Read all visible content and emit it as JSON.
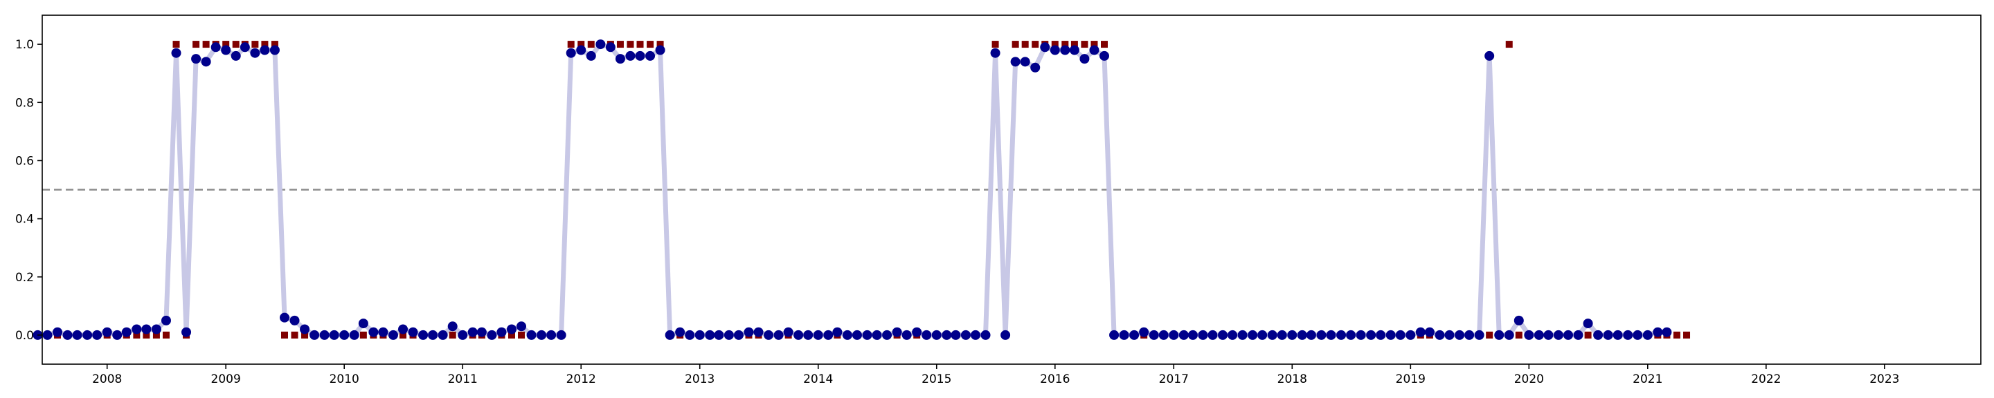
{
  "chart_data": {
    "type": "line",
    "title": "",
    "xlabel": "",
    "ylabel": "",
    "x_start": "2007-06",
    "x_step": "month",
    "xlim": [
      "2007-06-15",
      "2023-10-25"
    ],
    "ylim": [
      -0.1,
      1.1
    ],
    "x_ticks": [
      "2008",
      "2009",
      "2010",
      "2011",
      "2012",
      "2013",
      "2014",
      "2015",
      "2016",
      "2017",
      "2018",
      "2019",
      "2020",
      "2021",
      "2022",
      "2023"
    ],
    "y_ticks": [
      "0.0",
      "0.2",
      "0.4",
      "0.6",
      "0.8",
      "1.0"
    ],
    "threshold": 0.5,
    "grid": false,
    "series": [
      {
        "role": "predicted-probability",
        "style": "line+markers",
        "line_color": "#c8c8e6",
        "marker_color": "#00008b",
        "values": [
          0.0,
          0.0,
          0.01,
          0.0,
          0.0,
          0.0,
          0.0,
          0.01,
          0.0,
          0.01,
          0.02,
          0.02,
          0.02,
          0.05,
          0.97,
          0.01,
          0.95,
          0.94,
          0.99,
          0.98,
          0.96,
          0.99,
          0.97,
          0.98,
          0.98,
          0.06,
          0.05,
          0.02,
          0.0,
          0.0,
          0.0,
          0.0,
          0.0,
          0.04,
          0.01,
          0.01,
          0.0,
          0.02,
          0.01,
          0.0,
          0.0,
          0.0,
          0.03,
          0.0,
          0.01,
          0.01,
          0.0,
          0.01,
          0.02,
          0.03,
          0.0,
          0.0,
          0.0,
          0.0,
          0.97,
          0.98,
          0.96,
          1.0,
          0.99,
          0.95,
          0.96,
          0.96,
          0.96,
          0.98,
          0.0,
          0.01,
          0.0,
          0.0,
          0.0,
          0.0,
          0.0,
          0.0,
          0.01,
          0.01,
          0.0,
          0.0,
          0.01,
          0.0,
          0.0,
          0.0,
          0.0,
          0.01,
          0.0,
          0.0,
          0.0,
          0.0,
          0.0,
          0.01,
          0.0,
          0.01,
          0.0,
          0.0,
          0.0,
          0.0,
          0.0,
          0.0,
          0.0,
          0.97,
          0.0,
          0.94,
          0.94,
          0.92,
          0.99,
          0.98,
          0.98,
          0.98,
          0.95,
          0.98,
          0.96,
          0.0,
          0.0,
          0.0,
          0.01,
          0.0,
          0.0,
          0.0,
          0.0,
          0.0,
          0.0,
          0.0,
          0.0,
          0.0,
          0.0,
          0.0,
          0.0,
          0.0,
          0.0,
          0.0,
          0.0,
          0.0,
          0.0,
          0.0,
          0.0,
          0.0,
          0.0,
          0.0,
          0.0,
          0.0,
          0.0,
          0.0,
          0.01,
          0.01,
          0.0,
          0.0,
          0.0,
          0.0,
          0.0,
          0.96,
          0.0,
          0.0,
          0.05,
          0.0,
          0.0,
          0.0,
          0.0,
          0.0,
          0.0,
          0.04,
          0.0,
          0.0,
          0.0,
          0.0,
          0.0,
          0.0,
          0.01,
          0.01
        ]
      },
      {
        "role": "actual-label",
        "style": "square-markers",
        "marker_color": "#800000",
        "values": [
          0,
          0,
          0,
          0,
          0,
          0,
          0,
          0,
          0,
          0,
          0,
          0,
          0,
          0,
          1,
          0,
          1,
          1,
          1,
          1,
          1,
          1,
          1,
          1,
          1,
          0,
          0,
          0,
          0,
          0,
          0,
          0,
          0,
          0,
          0,
          0,
          0,
          0,
          0,
          0,
          0,
          0,
          0,
          0,
          0,
          0,
          0,
          0,
          0,
          0,
          0,
          0,
          0,
          0,
          1,
          1,
          1,
          1,
          1,
          1,
          1,
          1,
          1,
          1,
          0,
          0,
          0,
          0,
          0,
          0,
          0,
          0,
          0,
          0,
          0,
          0,
          0,
          0,
          0,
          0,
          0,
          0,
          0,
          0,
          0,
          0,
          0,
          0,
          0,
          0,
          0,
          0,
          0,
          0,
          0,
          0,
          0,
          1,
          0,
          1,
          1,
          1,
          1,
          1,
          1,
          1,
          1,
          1,
          1,
          0,
          0,
          0,
          0,
          0,
          0,
          0,
          0,
          0,
          0,
          0,
          0,
          0,
          0,
          0,
          0,
          0,
          0,
          0,
          0,
          0,
          0,
          0,
          0,
          0,
          0,
          0,
          0,
          0,
          0,
          0,
          0,
          0,
          0,
          0,
          0,
          0,
          0,
          0,
          0,
          1,
          0,
          0,
          0,
          0,
          0,
          0,
          0,
          0,
          0,
          0,
          0,
          0,
          0,
          0,
          0,
          0,
          0,
          0
        ]
      }
    ]
  }
}
